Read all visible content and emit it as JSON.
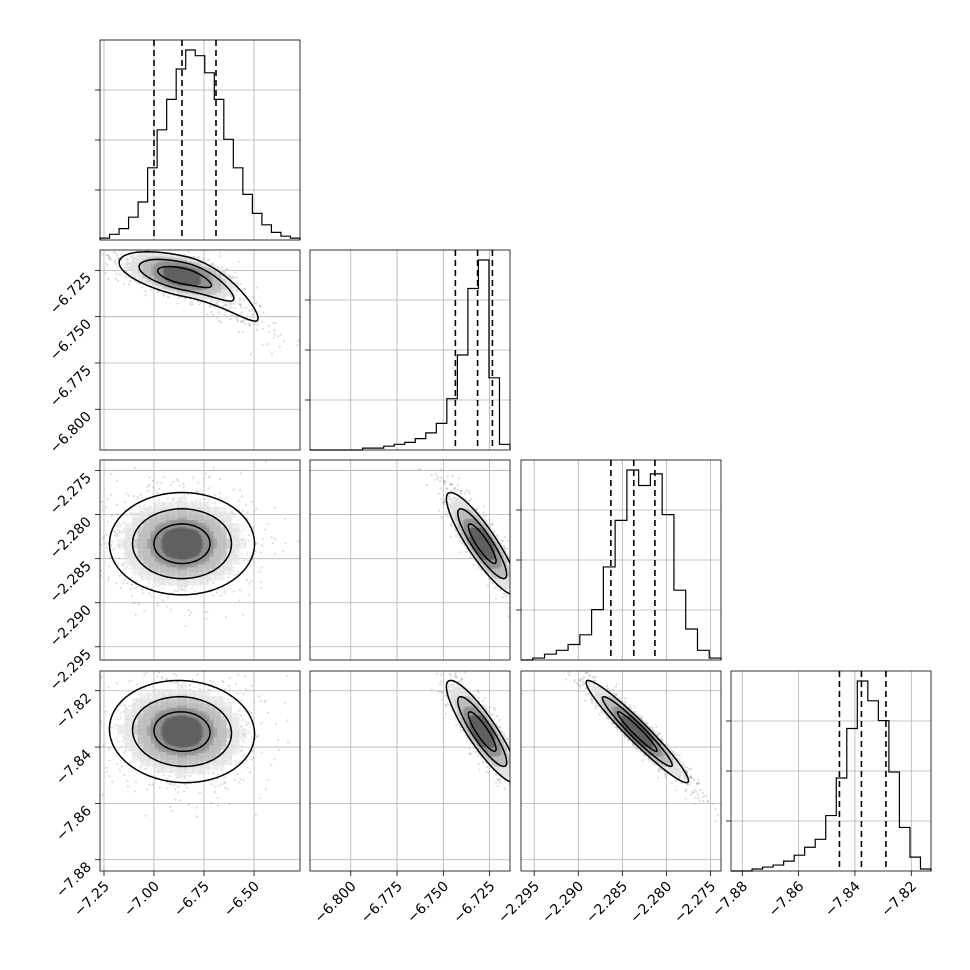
{
  "chart_data": {
    "type": "corner",
    "n_params": 4,
    "grid": true,
    "params": [
      {
        "range": [
          -7.27,
          -6.27
        ],
        "ticks": [
          "−7.25",
          "−7.00",
          "−6.75",
          "−6.50"
        ],
        "tick_values": [
          -7.25,
          -7.0,
          -6.75,
          -6.5
        ],
        "mean": -6.88,
        "sd": 0.15,
        "quantiles": [
          -7.0,
          -6.86,
          -6.69
        ]
      },
      {
        "range": [
          -6.822,
          -6.714
        ],
        "ticks": [
          "−6.800",
          "−6.775",
          "−6.750",
          "−6.725"
        ],
        "tick_values": [
          -6.8,
          -6.775,
          -6.75,
          -6.725
        ],
        "mean": -6.733,
        "sd": 0.008,
        "quantiles": [
          -6.7435,
          -6.7315,
          -6.7235
        ]
      },
      {
        "range": [
          -2.2965,
          -2.2738
        ],
        "ticks": [
          "−2.295",
          "−2.290",
          "−2.285",
          "−2.280",
          "−2.275"
        ],
        "tick_values": [
          -2.295,
          -2.29,
          -2.285,
          -2.28,
          -2.275
        ],
        "mean": -2.2838,
        "sd": 0.0024,
        "quantiles": [
          -2.2863,
          -2.2837,
          -2.2813
        ]
      },
      {
        "range": [
          -7.884,
          -7.813
        ],
        "ticks": [
          "−7.88",
          "−7.86",
          "−7.84",
          "−7.82"
        ],
        "tick_values": [
          -7.88,
          -7.86,
          -7.84,
          -7.82
        ],
        "mean": -7.8375,
        "sd": 0.0075,
        "quantiles": [
          -7.8455,
          -7.8377,
          -7.829
        ]
      }
    ],
    "histograms": [
      {
        "param": 0,
        "counts": [
          1,
          3,
          6,
          12,
          20,
          38,
          58,
          74,
          90,
          100,
          97,
          88,
          74,
          53,
          38,
          24,
          14,
          8,
          4,
          2,
          1
        ]
      },
      {
        "param": 1,
        "counts": [
          0,
          0,
          0,
          0,
          0,
          1,
          1,
          2,
          3,
          4,
          6,
          9,
          14,
          27,
          50,
          85,
          100,
          38,
          3
        ]
      },
      {
        "param": 2,
        "counts": [
          0,
          1,
          3,
          5,
          8,
          13,
          26,
          48,
          72,
          98,
          90,
          96,
          75,
          36,
          16,
          5,
          1
        ]
      },
      {
        "param": 3,
        "counts": [
          0,
          0,
          1,
          2,
          3,
          5,
          8,
          12,
          16,
          28,
          47,
          72,
          96,
          86,
          76,
          50,
          22,
          7,
          1
        ]
      }
    ],
    "pairs": [
      {
        "row": 1,
        "col": 0,
        "shape": "wedge_from_upper_left",
        "peak": [
          -6.86,
          -6.728
        ]
      },
      {
        "row": 2,
        "col": 0,
        "correlation": 0.0,
        "peak": [
          -6.86,
          -2.2833
        ]
      },
      {
        "row": 2,
        "col": 1,
        "correlation": 0.88,
        "peak": [
          -6.729,
          -2.2833
        ]
      },
      {
        "row": 3,
        "col": 0,
        "correlation": 0.05,
        "peak": [
          -6.86,
          -7.8345
        ]
      },
      {
        "row": 3,
        "col": 1,
        "correlation": 0.88,
        "peak": [
          -6.729,
          -7.8345
        ]
      },
      {
        "row": 3,
        "col": 2,
        "correlation": 0.96,
        "peak": [
          -2.2833,
          -7.8345
        ]
      }
    ]
  }
}
